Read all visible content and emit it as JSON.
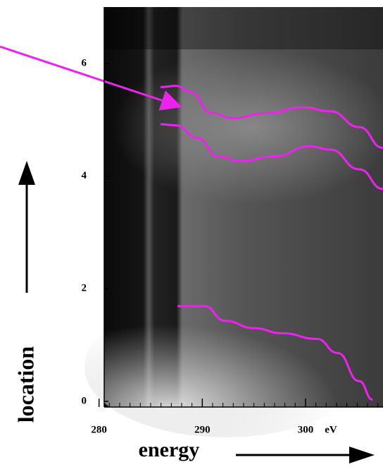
{
  "chart_data": {
    "type": "image",
    "x_label": "energy",
    "y_label": "location",
    "x_unit": "eV",
    "xlim": [
      280.5,
      307.5
    ],
    "xticks": [
      280,
      290,
      300
    ],
    "ylim": [
      -0.1,
      7
    ],
    "yticks": [
      0,
      2,
      4,
      6
    ],
    "series": [
      {
        "color": "#ee22ee",
        "x": [
          285.95,
          287.45,
          288.8,
          290.9,
          292.9,
          296.3,
          299.7,
          302.4,
          305.2,
          307.5
        ],
        "values": [
          5.58,
          5.6,
          5.5,
          5.12,
          5.03,
          5.12,
          5.22,
          5.15,
          4.87,
          4.5
        ]
      },
      {
        "color": "#ee22ee",
        "x": [
          285.95,
          287.45,
          289.5,
          291.5,
          293.6,
          297.0,
          300.4,
          302.4,
          305.2,
          307.5
        ],
        "values": [
          4.92,
          4.9,
          4.68,
          4.35,
          4.27,
          4.35,
          4.53,
          4.47,
          4.12,
          3.77
        ]
      },
      {
        "color": "#ee22ee",
        "x": [
          287.6,
          290.2,
          292.2,
          295.0,
          297.7,
          301.1,
          303.1,
          305.2,
          306.5
        ],
        "values": [
          1.69,
          1.69,
          1.43,
          1.3,
          1.21,
          1.11,
          0.86,
          0.36,
          0.03
        ]
      }
    ]
  }
}
